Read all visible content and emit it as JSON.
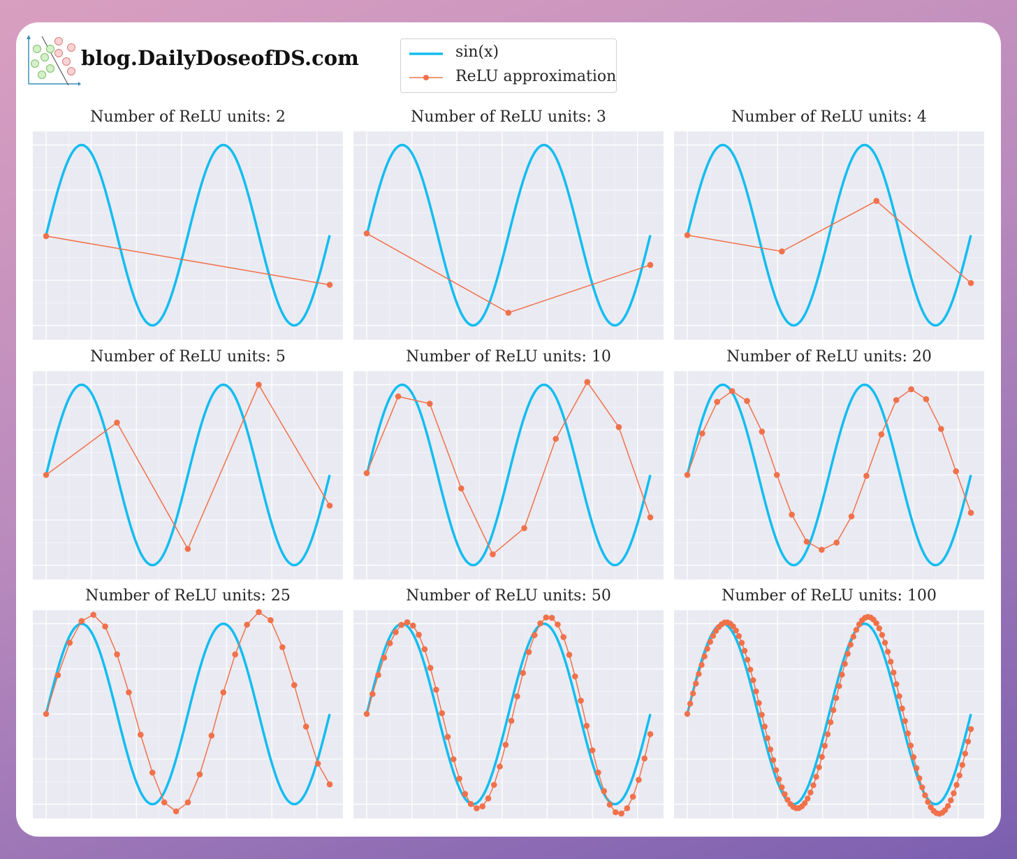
{
  "brand": {
    "text": "blog.DailyDoseofDS.com",
    "logo_icon": "scatter-classifier-logo-icon"
  },
  "colors": {
    "sin": "#13bdf0",
    "relu": "#f0714a",
    "panel_bg": "#eaeaf2",
    "grid": "#ffffff"
  },
  "legend": {
    "items": [
      {
        "label": "sin(x)",
        "style": "line"
      },
      {
        "label": "ReLU approximation",
        "style": "line-marker"
      }
    ]
  },
  "chart_data": [
    {
      "type": "line",
      "title": "Number of ReLU units: 2",
      "units": 2,
      "xlim": [
        0,
        12.566
      ],
      "ylim": [
        -1.05,
        1.05
      ],
      "grid": true,
      "series": [
        {
          "name": "sin(x)",
          "function": "sin",
          "x_range": [
            0,
            12.566
          ]
        },
        {
          "name": "ReLU approximation",
          "x": [
            0,
            12.566
          ],
          "y": [
            -0.01,
            -0.55
          ]
        }
      ]
    },
    {
      "type": "line",
      "title": "Number of ReLU units: 3",
      "units": 3,
      "xlim": [
        0,
        12.566
      ],
      "ylim": [
        -1.05,
        1.05
      ],
      "grid": true,
      "series": [
        {
          "name": "sin(x)",
          "function": "sin",
          "x_range": [
            0,
            12.566
          ]
        },
        {
          "name": "ReLU approximation",
          "x": [
            0,
            6.28,
            12.566
          ],
          "y": [
            0.02,
            -0.86,
            -0.33
          ]
        }
      ]
    },
    {
      "type": "line",
      "title": "Number of ReLU units: 4",
      "units": 4,
      "xlim": [
        0,
        12.566
      ],
      "ylim": [
        -1.05,
        1.05
      ],
      "grid": true,
      "series": [
        {
          "name": "sin(x)",
          "function": "sin",
          "x_range": [
            0,
            12.566
          ]
        },
        {
          "name": "ReLU approximation",
          "x": [
            0,
            4.19,
            8.38,
            12.566
          ],
          "y": [
            0.0,
            -0.18,
            0.38,
            -0.53
          ]
        }
      ]
    },
    {
      "type": "line",
      "title": "Number of ReLU units: 5",
      "units": 5,
      "xlim": [
        0,
        12.566
      ],
      "ylim": [
        -1.05,
        1.05
      ],
      "grid": true,
      "series": [
        {
          "name": "sin(x)",
          "function": "sin",
          "x_range": [
            0,
            12.566
          ]
        },
        {
          "name": "ReLU approximation",
          "x": [
            0,
            3.14,
            6.28,
            9.42,
            12.566
          ],
          "y": [
            0.0,
            0.58,
            -0.82,
            1.0,
            -0.34
          ]
        }
      ]
    },
    {
      "type": "line",
      "title": "Number of ReLU units: 10",
      "units": 10,
      "xlim": [
        0,
        12.566
      ],
      "ylim": [
        -1.05,
        1.05
      ],
      "grid": true,
      "series": [
        {
          "name": "sin(x)",
          "function": "sin",
          "x_range": [
            0,
            12.566
          ]
        },
        {
          "name": "ReLU approximation",
          "x": [
            0,
            1.396,
            2.793,
            4.189,
            5.585,
            6.981,
            8.378,
            9.774,
            11.17,
            12.566
          ],
          "y": [
            0.02,
            0.87,
            0.79,
            -0.15,
            -0.88,
            -0.59,
            0.4,
            1.03,
            0.53,
            -0.47
          ]
        }
      ]
    },
    {
      "type": "line",
      "title": "Number of ReLU units: 20",
      "units": 20,
      "xlim": [
        0,
        12.566
      ],
      "ylim": [
        -1.05,
        1.05
      ],
      "grid": true,
      "series": [
        {
          "name": "sin(x)",
          "function": "sin",
          "x_range": [
            0,
            12.566
          ]
        },
        {
          "name": "ReLU approximation",
          "x": [
            0,
            0.661,
            1.323,
            1.984,
            2.646,
            3.307,
            3.968,
            4.63,
            5.291,
            5.953,
            6.614,
            7.275,
            7.937,
            8.598,
            9.26,
            9.921,
            10.582,
            11.244,
            11.905,
            12.566
          ],
          "y": [
            0.0,
            0.46,
            0.81,
            0.93,
            0.82,
            0.48,
            0.0,
            -0.44,
            -0.74,
            -0.83,
            -0.75,
            -0.46,
            -0.01,
            0.45,
            0.83,
            0.95,
            0.84,
            0.51,
            0.04,
            -0.42
          ]
        }
      ]
    },
    {
      "type": "line",
      "title": "Number of ReLU units: 25",
      "units": 25,
      "xlim": [
        0,
        12.566
      ],
      "ylim": [
        -1.05,
        1.05
      ],
      "grid": true,
      "series": [
        {
          "name": "sin(x)",
          "function": "sin",
          "x_range": [
            0,
            12.566
          ]
        },
        {
          "name": "ReLU approximation",
          "x": [
            0,
            0.524,
            1.047,
            1.571,
            2.094,
            2.618,
            3.142,
            3.665,
            4.189,
            4.712,
            5.236,
            5.76,
            6.283,
            6.807,
            7.33,
            7.854,
            8.378,
            8.901,
            9.425,
            9.948,
            10.472,
            10.996,
            11.519,
            12.043,
            12.566
          ],
          "y": [
            0.0,
            0.43,
            0.79,
            1.03,
            1.1,
            0.97,
            0.66,
            0.24,
            -0.23,
            -0.65,
            -0.98,
            -1.08,
            -0.98,
            -0.67,
            -0.24,
            0.24,
            0.66,
            0.99,
            1.13,
            1.04,
            0.74,
            0.32,
            -0.14,
            -0.55,
            -0.78
          ]
        }
      ]
    },
    {
      "type": "line",
      "title": "Number of ReLU units: 50",
      "units": 50,
      "xlim": [
        0,
        12.566
      ],
      "ylim": [
        -1.05,
        1.05
      ],
      "grid": true,
      "offset_series": {
        "name": "ReLU approximation",
        "n": 50,
        "amp": 1.0,
        "delay": 0.2,
        "bias": 0.0,
        "tail_gain": 0.12
      },
      "series": [
        {
          "name": "sin(x)",
          "function": "sin",
          "x_range": [
            0,
            12.566
          ]
        }
      ]
    },
    {
      "type": "line",
      "title": "Number of ReLU units: 100",
      "units": 100,
      "xlim": [
        0,
        12.566
      ],
      "ylim": [
        -1.05,
        1.05
      ],
      "grid": true,
      "offset_series": {
        "name": "ReLU approximation",
        "n": 100,
        "amp": 1.0,
        "delay": 0.15,
        "bias": 0.0,
        "tail_gain": 0.12
      },
      "series": [
        {
          "name": "sin(x)",
          "function": "sin",
          "x_range": [
            0,
            12.566
          ]
        }
      ]
    }
  ]
}
